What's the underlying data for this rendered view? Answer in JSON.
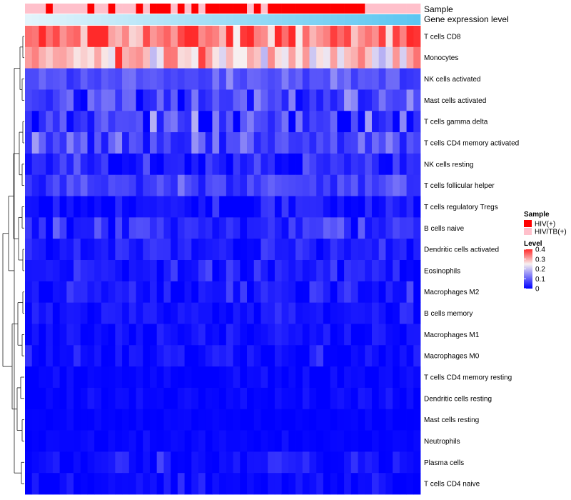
{
  "chart_data": {
    "type": "heatmap",
    "title": "",
    "tracks": {
      "sample": {
        "label": "Sample",
        "values": [
          "HIV/TB(+)",
          "HIV/TB(+)",
          "HIV/TB(+)",
          "HIV(+)",
          "HIV/TB(+)",
          "HIV/TB(+)",
          "HIV/TB(+)",
          "HIV/TB(+)",
          "HIV/TB(+)",
          "HIV(+)",
          "HIV/TB(+)",
          "HIV/TB(+)",
          "HIV(+)",
          "HIV/TB(+)",
          "HIV/TB(+)",
          "HIV/TB(+)",
          "HIV(+)",
          "HIV/TB(+)",
          "HIV(+)",
          "HIV(+)",
          "HIV(+)",
          "HIV/TB(+)",
          "HIV(+)",
          "HIV/TB(+)",
          "HIV(+)",
          "HIV/TB(+)",
          "HIV(+)",
          "HIV(+)",
          "HIV(+)",
          "HIV(+)",
          "HIV(+)",
          "HIV(+)",
          "HIV/TB(+)",
          "HIV(+)",
          "HIV/TB(+)",
          "HIV(+)",
          "HIV(+)",
          "HIV(+)",
          "HIV(+)",
          "HIV(+)",
          "HIV(+)",
          "HIV(+)",
          "HIV(+)",
          "HIV(+)",
          "HIV(+)",
          "HIV(+)",
          "HIV(+)",
          "HIV(+)",
          "HIV(+)",
          "HIV/TB(+)",
          "HIV/TB(+)",
          "HIV/TB(+)",
          "HIV/TB(+)",
          "HIV/TB(+)",
          "HIV/TB(+)",
          "HIV/TB(+)",
          "HIV/TB(+)"
        ]
      },
      "expression": {
        "label": "Gene expression level",
        "min_color": "#e3f4fb",
        "max_color": "#5bc6f1"
      }
    },
    "rows": [
      "T cells CD8",
      "Monocytes",
      "NK cells activated",
      "Mast cells activated",
      "T cells gamma delta",
      "T cells CD4 memory activated",
      "NK cells resting",
      "T cells follicular helper",
      "T cells regulatory  Tregs",
      "B cells naive",
      "Dendritic cells activated",
      "Eosinophils",
      "Macrophages M2",
      "B cells memory",
      "Macrophages M1",
      "Macrophages M0",
      "T cells CD4 memory resting",
      "Dendritic cells resting",
      "Mast cells resting",
      "Neutrophils",
      "Plasma cells",
      "T cells CD4 naive"
    ],
    "row_mean": [
      0.34,
      0.27,
      0.08,
      0.075,
      0.06,
      0.07,
      0.03,
      0.065,
      0.01,
      0.035,
      0.025,
      0.025,
      0.025,
      0.02,
      0.01,
      0.012,
      0.005,
      0.006,
      0.004,
      0.004,
      0.012,
      0.008
    ],
    "row_spread": [
      0.07,
      0.06,
      0.035,
      0.05,
      0.065,
      0.05,
      0.04,
      0.03,
      0.03,
      0.035,
      0.025,
      0.03,
      0.03,
      0.025,
      0.02,
      0.025,
      0.01,
      0.012,
      0.008,
      0.008,
      0.03,
      0.02
    ],
    "n_columns": 57,
    "color_scale": {
      "title": "Level",
      "min": 0,
      "max": 0.4,
      "ticks": [
        {
          "value": 0.4,
          "label": "0.4"
        },
        {
          "value": 0.3,
          "label": "0.3"
        },
        {
          "value": 0.2,
          "label": "0.2"
        },
        {
          "value": 0.1,
          "label": "0.1"
        },
        {
          "value": 0,
          "label": "0"
        }
      ],
      "low_color": "#0000ff",
      "mid_value": 0.25,
      "mid_color": "#f8f0f0",
      "high_color": "#ff2a2a"
    },
    "legend": {
      "title": "Sample",
      "items": [
        {
          "label": "HIV(+)",
          "color": "#ff0000"
        },
        {
          "label": "HIV/TB(+)",
          "color": "#ffc0cb"
        }
      ]
    },
    "dendrogram": {
      "merges": [
        [
          0,
          1
        ],
        [
          2,
          3
        ],
        [
          4,
          5
        ],
        [
          6,
          7
        ],
        [
          8,
          9
        ],
        [
          10,
          11
        ],
        [
          12,
          13
        ],
        [
          14,
          15
        ],
        [
          16,
          17
        ],
        [
          18,
          19
        ],
        [
          20,
          21
        ],
        [
          22,
          23
        ],
        [
          24,
          25
        ],
        [
          26,
          27
        ],
        [
          28,
          29
        ],
        [
          30,
          31
        ],
        [
          32,
          33
        ],
        [
          34,
          35
        ],
        [
          36,
          37
        ],
        [
          38,
          39
        ],
        [
          40,
          41
        ]
      ],
      "heights": [
        2,
        3,
        2,
        3,
        3,
        2,
        2,
        3,
        5,
        3,
        4,
        6,
        7,
        8,
        9,
        10,
        14,
        15,
        17,
        22,
        30
      ]
    }
  }
}
